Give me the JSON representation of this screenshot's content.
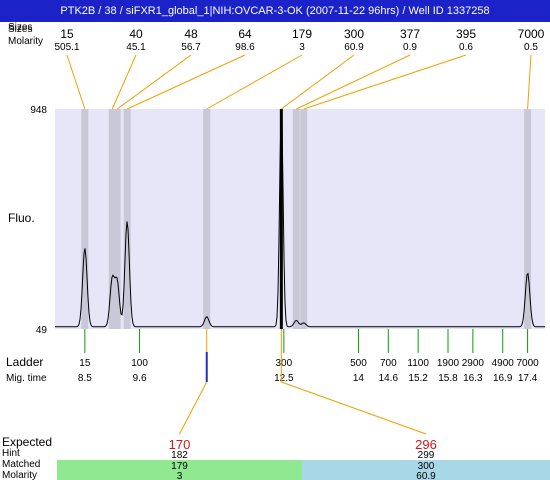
{
  "header": {
    "title": "PTK2B / 38 / siFXR1_global_1|NIH:OVCAR-3-OK (2007-11-22 96hrs) / Well ID 1337258",
    "row_label_sizes": "Sizes",
    "row_label_molarity": "Molarity"
  },
  "labels": {
    "fluo": "Fluo.",
    "ladder": "Ladder",
    "mig_time": "Mig. time",
    "expected": "Expected",
    "hint": "Hint",
    "matched": "Matched",
    "molarity": "Molarity"
  },
  "colors": {
    "title_bg": "#1a22c8",
    "plot_bg": "#e6e6f8",
    "band": "#c8c8d8",
    "leader": "#f0a000",
    "ladder_tick": "#00a000",
    "expected_text": "#d01818",
    "cell_green": "#90e890",
    "cell_blue": "#a8d8e8"
  },
  "chart_data": {
    "type": "line",
    "y_axis": {
      "min_label": "49",
      "max_label": "948",
      "ylim": [
        49,
        948
      ]
    },
    "x_axis_unit": "migration time",
    "xlim": [
      7.9,
      17.75
    ],
    "peaks": [
      {
        "size": "15",
        "molarity": "505.1",
        "time": 8.5,
        "height": 370
      },
      {
        "size": "40",
        "molarity": "45.1",
        "time": 9.05,
        "height": 240
      },
      {
        "size": "48",
        "molarity": "56.7",
        "time": 9.15,
        "height": 230
      },
      {
        "size": "64",
        "molarity": "98.6",
        "time": 9.35,
        "height": 480
      },
      {
        "size": "179",
        "molarity": "3",
        "time": 10.95,
        "height": 90
      },
      {
        "size": "300",
        "molarity": "60.9",
        "time": 12.45,
        "height": 948
      },
      {
        "size": "377",
        "molarity": "0.9",
        "time": 12.75,
        "height": 75
      },
      {
        "size": "395",
        "molarity": "0.6",
        "time": 12.9,
        "height": 65
      },
      {
        "size": "7000",
        "molarity": "0.5",
        "time": 17.4,
        "height": 270
      }
    ],
    "ladder": [
      {
        "size": "15",
        "time": "8.5"
      },
      {
        "size": "100",
        "time": "9.6"
      },
      {
        "size": "300",
        "time": "12.5"
      },
      {
        "size": "500",
        "time": "14"
      },
      {
        "size": "700",
        "time": "14.6"
      },
      {
        "size": "1100",
        "time": "15.2"
      },
      {
        "size": "1900",
        "time": "15.8"
      },
      {
        "size": "2900",
        "time": "16.3"
      },
      {
        "size": "4900",
        "time": "16.9"
      },
      {
        "size": "7000",
        "time": "17.4"
      }
    ],
    "expected": [
      {
        "value": "170",
        "hint": "182",
        "matched": "179",
        "molarity": "3",
        "time": 10.95,
        "color": "green"
      },
      {
        "value": "296",
        "hint": "299",
        "matched": "300",
        "molarity": "60.9",
        "time": 12.45,
        "color": "blue"
      }
    ]
  }
}
